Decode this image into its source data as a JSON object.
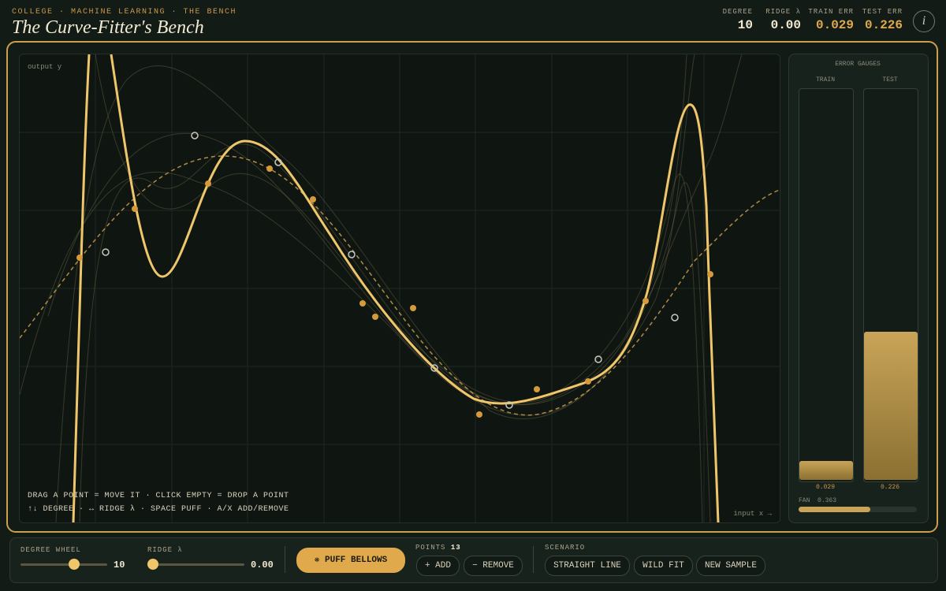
{
  "header": {
    "breadcrumb": "COLLEGE · MACHINE LEARNING · THE BENCH",
    "title": "The Curve-Fitter's Bench"
  },
  "stats": [
    {
      "label": "DEGREE",
      "value": 10
    },
    {
      "label": "RIDGE λ",
      "value": "0.00"
    },
    {
      "label": "TRAIN ERR",
      "value": 0.029
    },
    {
      "label": "TEST ERR",
      "value": 0.226
    }
  ],
  "plot": {
    "y_label": "output y",
    "x_label": "input x →",
    "hints": [
      "DRAG A POINT = MOVE IT · CLICK EMPTY = DROP A POINT",
      "↑↓ DEGREE · ↔ RIDGE λ · SPACE PUFF · A/X ADD/REMOVE"
    ]
  },
  "gauges": {
    "title": "ERROR GAUGES",
    "train": {
      "label": "TRAIN",
      "value": 0.029
    },
    "test": {
      "label": "TEST",
      "value": 0.226
    },
    "fan": {
      "label": "FAN",
      "value": 0.363
    }
  },
  "controls": {
    "degree": {
      "label": "DEGREE WHEEL",
      "value": 10
    },
    "ridge": {
      "label": "RIDGE λ",
      "value": "0.00"
    },
    "puff": "❋ PUFF BELLOWS",
    "points": {
      "label": "POINTS",
      "count": 13
    },
    "add": "+ ADD",
    "remove": "− REMOVE",
    "scenario": {
      "label": "SCENARIO",
      "options": [
        "STRAIGHT LINE",
        "WILD FIT",
        "NEW SAMPLE"
      ]
    }
  }
}
